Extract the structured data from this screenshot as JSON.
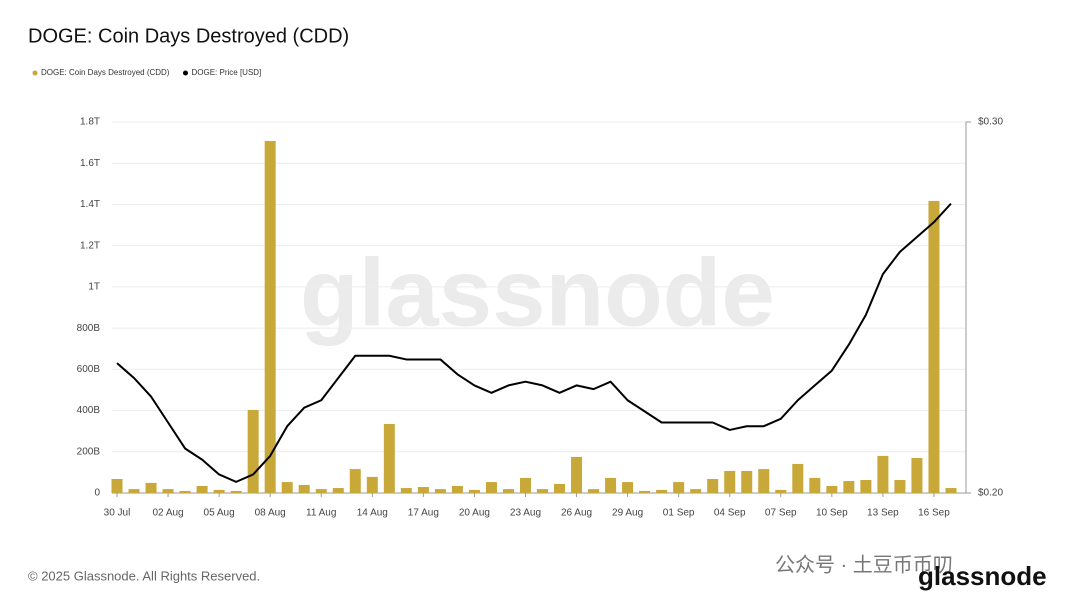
{
  "chart_data": {
    "type": "bar",
    "title": "DOGE: Coin Days Destroyed (CDD)",
    "categories": [
      "30 Jul",
      null,
      null,
      "02 Aug",
      null,
      null,
      "05 Aug",
      null,
      null,
      "08 Aug",
      null,
      null,
      "11 Aug",
      null,
      null,
      "14 Aug",
      null,
      null,
      "17 Aug",
      null,
      null,
      "20 Aug",
      null,
      null,
      "23 Aug",
      null,
      null,
      "26 Aug",
      null,
      null,
      "29 Aug",
      null,
      null,
      "01 Sep",
      null,
      null,
      "04 Sep",
      null,
      null,
      "07 Sep",
      null,
      null,
      "10 Sep",
      null,
      null,
      "13 Sep",
      null,
      null,
      "16 Sep",
      null
    ],
    "series": [
      {
        "name": "DOGE: Coin Days Destroyed (CDD)",
        "type": "bar",
        "color": "#c8a838",
        "values": [
          68,
          19,
          49,
          19,
          10,
          34,
          15,
          10,
          403,
          1708,
          53,
          39,
          19,
          24,
          116,
          78,
          335,
          24,
          29,
          19,
          34,
          15,
          53,
          19,
          73,
          19,
          44,
          175,
          19,
          73,
          53,
          10,
          15,
          53,
          19,
          68,
          107,
          107,
          116,
          15,
          141,
          73,
          34,
          58,
          63,
          180,
          63,
          170,
          1417,
          24
        ]
      },
      {
        "name": "DOGE: Price [USD]",
        "type": "line",
        "color": "#000000",
        "axis": "y2",
        "values": [
          0.235,
          0.231,
          0.226,
          0.219,
          0.212,
          0.209,
          0.205,
          0.203,
          0.205,
          0.21,
          0.218,
          0.223,
          0.225,
          0.231,
          0.237,
          0.237,
          0.237,
          0.236,
          0.236,
          0.236,
          0.232,
          0.229,
          0.227,
          0.229,
          0.23,
          0.229,
          0.227,
          0.229,
          0.228,
          0.23,
          0.225,
          0.222,
          0.219,
          0.219,
          0.219,
          0.219,
          0.217,
          0.218,
          0.218,
          0.22,
          0.225,
          0.229,
          0.233,
          0.24,
          0.248,
          0.259,
          0.265,
          0.269,
          0.273,
          0.278
        ]
      }
    ],
    "ylim": [
      0,
      1800
    ],
    "yticks": [
      0,
      {
        "value": 200,
        "label": "200B"
      },
      {
        "value": 400,
        "label": "400B"
      },
      {
        "value": 600,
        "label": "600B"
      },
      {
        "value": 800,
        "label": "800B"
      },
      {
        "value": 1000,
        "label": "1T"
      },
      {
        "value": 1200,
        "label": "1.2T"
      },
      {
        "value": 1400,
        "label": "1.4T"
      },
      {
        "value": 1600,
        "label": "1.6T"
      },
      {
        "value": 1800,
        "label": "1.8T"
      }
    ],
    "y2lim": [
      0.2,
      0.3
    ],
    "y2ticks": [
      {
        "value": 0.2,
        "label": "$0.20"
      },
      {
        "value": 0.3,
        "label": "$0.30"
      }
    ],
    "grid": true,
    "legend": "top-left"
  },
  "watermark": "glassnode",
  "overlay": "公众号 · 土豆币币叨",
  "footer": {
    "copyright": "© 2025 Glassnode. All Rights Reserved.",
    "logo": "glassnode"
  }
}
